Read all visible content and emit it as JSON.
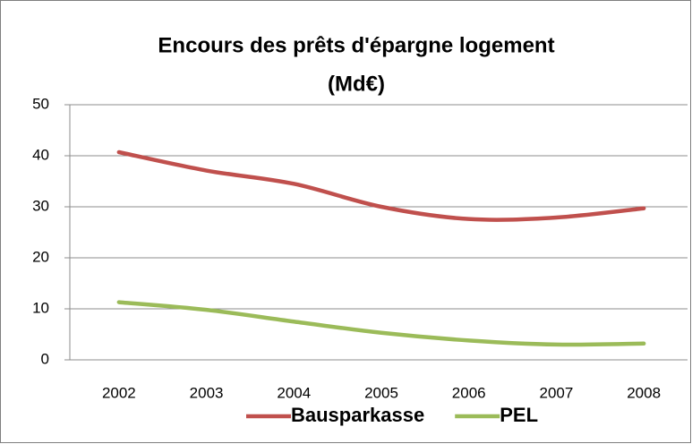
{
  "chart_data": {
    "type": "line",
    "title": [
      "Encours des prêts d'épargne logement",
      "(Md€)"
    ],
    "categories": [
      "2002",
      "2003",
      "2004",
      "2005",
      "2006",
      "2007",
      "2008"
    ],
    "series": [
      {
        "name": "Bausparkasse",
        "color": "#c0504d",
        "values": [
          40.7,
          37.1,
          34.5,
          30,
          27.6,
          27.9,
          29.7
        ]
      },
      {
        "name": "PEL",
        "color": "#9bbb59",
        "values": [
          11.3,
          9.8,
          7.5,
          5.3,
          3.8,
          3,
          3.2
        ]
      }
    ],
    "ylim": [
      0,
      50
    ],
    "yticks": [
      0,
      10,
      20,
      30,
      40,
      50
    ],
    "grid": true,
    "legend": "bottom"
  }
}
